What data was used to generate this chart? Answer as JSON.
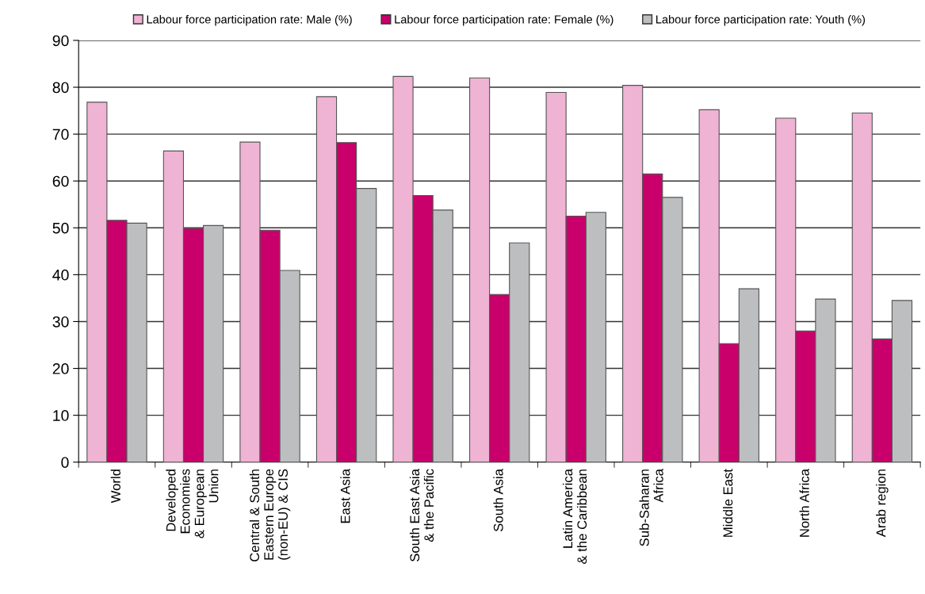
{
  "chart_data": {
    "type": "bar",
    "categories": [
      "World",
      "Developed\nEconomies\n& European\nUnion",
      "Central & South\nEastern Europe\n(non-EU) & CIS",
      "East Asia",
      "South East Asia\n& the Pacific",
      "South Asia",
      "Latin America\n& the Caribbean",
      "Sub-Saharan\nAfrica",
      "Middle East",
      "North Africa",
      "Arab region"
    ],
    "series": [
      {
        "name": "Labour force participation rate: Male (%)",
        "color": "#efb3d3",
        "values": [
          76.8,
          66.4,
          68.3,
          78.0,
          82.3,
          82.0,
          78.9,
          80.4,
          75.2,
          73.4,
          74.5
        ]
      },
      {
        "name": "Labour force participation rate: Female (%)",
        "color": "#c9006b",
        "values": [
          51.6,
          49.9,
          49.5,
          68.2,
          56.9,
          35.8,
          52.5,
          61.5,
          25.3,
          28.0,
          26.3
        ]
      },
      {
        "name": "Labour force participation rate: Youth (%)",
        "color": "#bdbec0",
        "values": [
          51.0,
          50.5,
          40.9,
          58.4,
          53.8,
          46.8,
          53.3,
          56.5,
          37.0,
          34.8,
          34.5
        ]
      }
    ],
    "ylim": [
      0,
      90
    ],
    "yticks": [
      0,
      10,
      20,
      30,
      40,
      50,
      60,
      70,
      80,
      90
    ],
    "grid": "y",
    "legend": "top"
  }
}
